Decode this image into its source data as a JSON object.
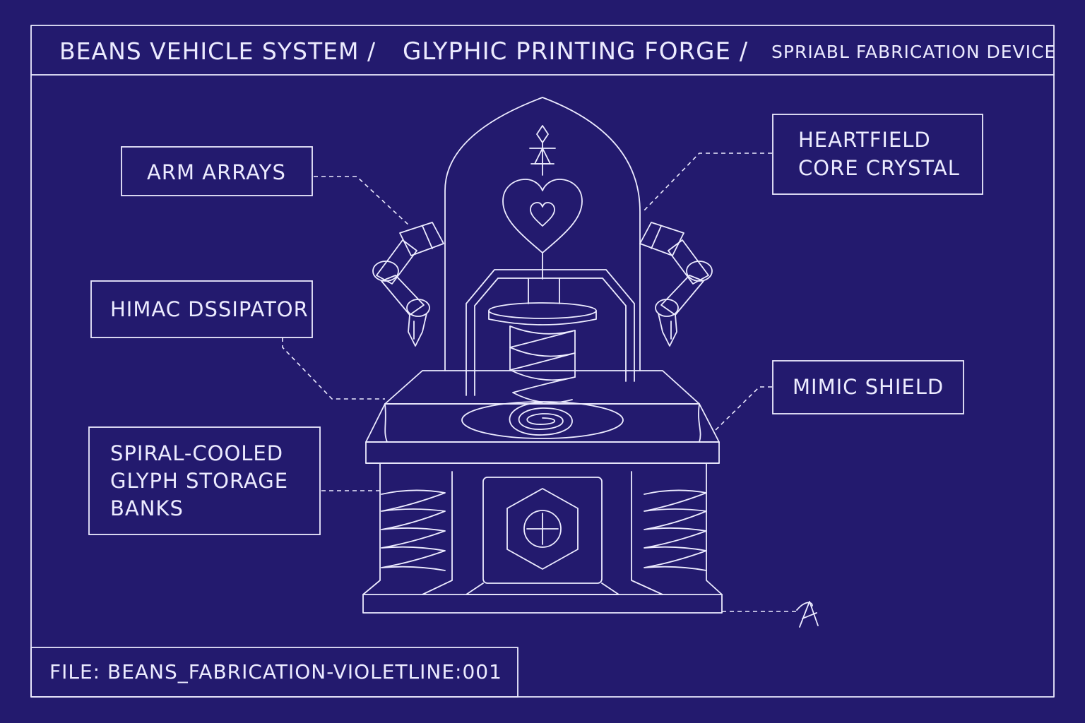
{
  "header": {
    "title_1": "BEANS VEHICLE SYSTEM /",
    "title_2": "GLYPHIC PRINTING FORGE /",
    "title_3": "SPRIABL FABRICATION DEVICE"
  },
  "labels": {
    "arm_arrays": "ARM ARRAYS",
    "heartfield": [
      "HEARTFIELD",
      "CORE CRYSTAL"
    ],
    "himac": "HIMAC DSSIPATOR",
    "mimic": "MIMIC SHIELD",
    "spiral_storage": [
      "SPIRAL-COOLED",
      "GLYPH STORAGE",
      "BANKS"
    ]
  },
  "footer": {
    "file": "FILE: BEANS_FABRICATION-VIOLETLINE:001"
  },
  "colors": {
    "background": "#231a6e",
    "line": "#ecebff"
  },
  "icons": [
    "heart-icon",
    "crosshair-icon",
    "signature-mark",
    "glyph-sigil"
  ]
}
